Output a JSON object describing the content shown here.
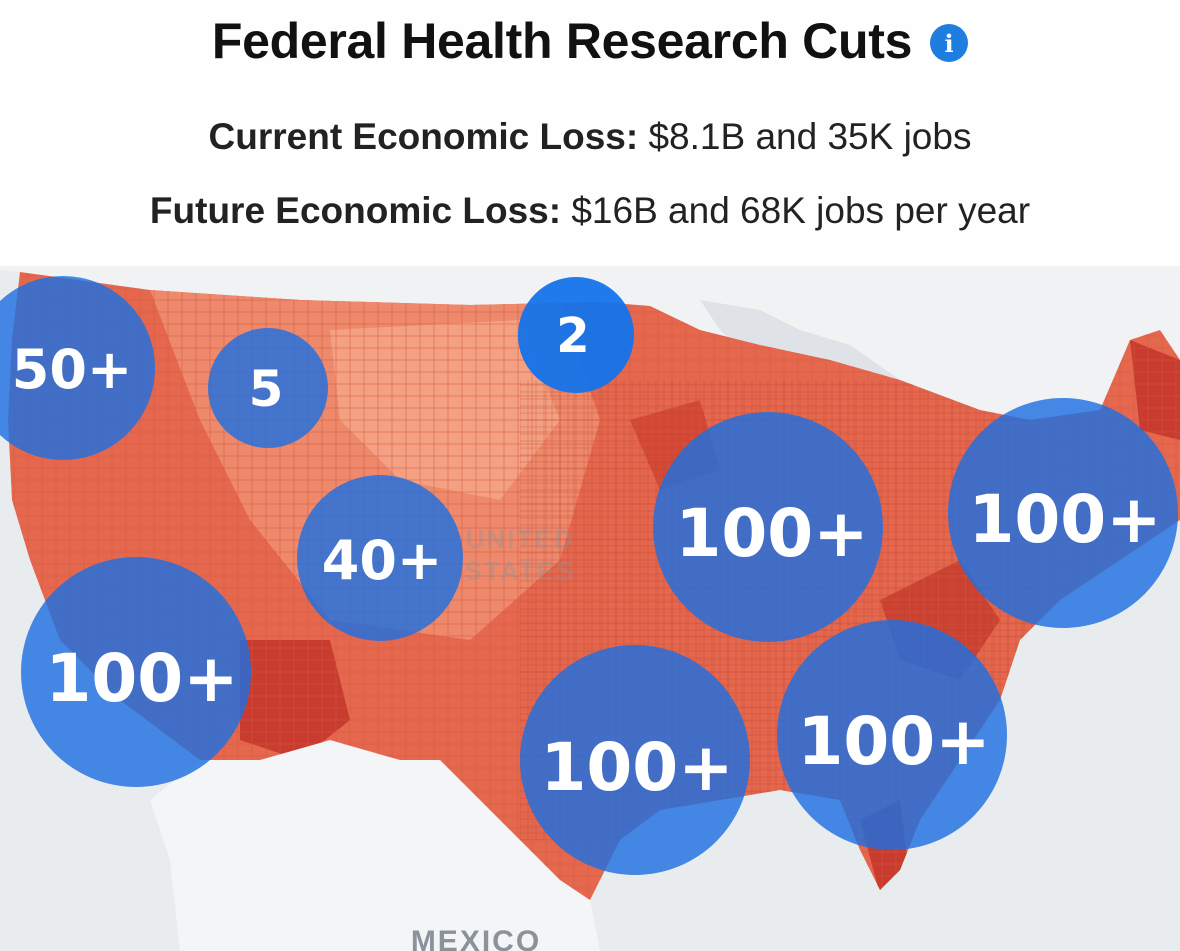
{
  "header": {
    "title": "Federal Health Research Cuts",
    "info_icon": "info-icon",
    "current_label": "Current Economic Loss:",
    "current_value": " $8.1B and 35K jobs",
    "future_label": "Future Economic Loss:",
    "future_value": " $16B and 68K jobs per year"
  },
  "map": {
    "place_labels": {
      "mexico": "MEXICO",
      "center_line1": "UNITED",
      "center_line2": "STATES"
    },
    "clusters": [
      {
        "id": "northwest",
        "label": "50+"
      },
      {
        "id": "idaho",
        "label": "5"
      },
      {
        "id": "north-dakota",
        "label": "2"
      },
      {
        "id": "colorado",
        "label": "40+"
      },
      {
        "id": "california",
        "label": "100+"
      },
      {
        "id": "midwest",
        "label": "100+"
      },
      {
        "id": "northeast",
        "label": "100+"
      },
      {
        "id": "texas",
        "label": "100+"
      },
      {
        "id": "southeast",
        "label": "100+"
      }
    ],
    "colors": {
      "land": "#e5684e",
      "land_light": "#f3a182",
      "land_dark": "#c83b2e",
      "water": "#e9ecef",
      "cluster": "#1f6fe0",
      "cluster_text": "#ffffff"
    }
  }
}
